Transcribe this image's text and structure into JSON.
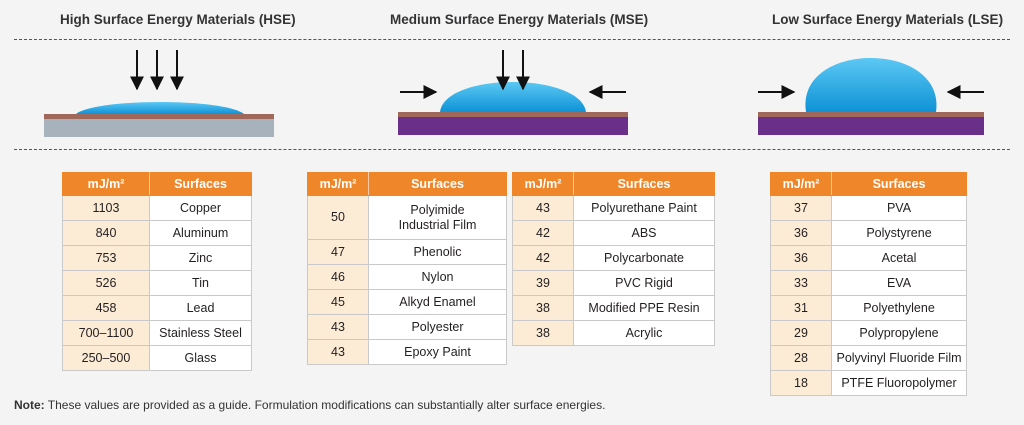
{
  "headings": {
    "hse": "High Surface Energy Materials (HSE)",
    "mse": "Medium Surface Energy Materials (MSE)",
    "lse": "Low Surface Energy Materials (LSE)"
  },
  "colors": {
    "header_orange": "#f0862a",
    "value_cell": "#fcecd6",
    "droplet_blue": "#19a3e0",
    "film_brown": "#a0685a",
    "hse_substrate": "#a7b2bc",
    "mse_lse_substrate": "#6a2f88"
  },
  "columns": {
    "unit": "mJ/m²",
    "surfaces": "Surfaces"
  },
  "tables": {
    "hse": [
      {
        "value": "1103",
        "surface": "Copper"
      },
      {
        "value": "840",
        "surface": "Aluminum"
      },
      {
        "value": "753",
        "surface": "Zinc"
      },
      {
        "value": "526",
        "surface": "Tin"
      },
      {
        "value": "458",
        "surface": "Lead"
      },
      {
        "value": "700–1100",
        "surface": "Stainless Steel"
      },
      {
        "value": "250–500",
        "surface": "Glass"
      }
    ],
    "mse1": [
      {
        "value": "50",
        "surface": "Polyimide\nIndustrial Film"
      },
      {
        "value": "47",
        "surface": "Phenolic"
      },
      {
        "value": "46",
        "surface": "Nylon"
      },
      {
        "value": "45",
        "surface": "Alkyd Enamel"
      },
      {
        "value": "43",
        "surface": "Polyester"
      },
      {
        "value": "43",
        "surface": "Epoxy Paint"
      }
    ],
    "mse2": [
      {
        "value": "43",
        "surface": "Polyurethane Paint"
      },
      {
        "value": "42",
        "surface": "ABS"
      },
      {
        "value": "42",
        "surface": "Polycarbonate"
      },
      {
        "value": "39",
        "surface": "PVC Rigid"
      },
      {
        "value": "38",
        "surface": "Modified PPE Resin"
      },
      {
        "value": "38",
        "surface": "Acrylic"
      }
    ],
    "lse": [
      {
        "value": "37",
        "surface": "PVA"
      },
      {
        "value": "36",
        "surface": "Polystyrene"
      },
      {
        "value": "36",
        "surface": "Acetal"
      },
      {
        "value": "33",
        "surface": "EVA"
      },
      {
        "value": "31",
        "surface": "Polyethylene"
      },
      {
        "value": "29",
        "surface": "Polypropylene"
      },
      {
        "value": "28",
        "surface": "Polyvinyl Fluoride Film"
      },
      {
        "value": "18",
        "surface": "PTFE Fluoropolymer"
      }
    ]
  },
  "note": {
    "label": "Note:",
    "text": " These values are provided as a guide. Formulation modifications can substantially alter surface energies."
  }
}
